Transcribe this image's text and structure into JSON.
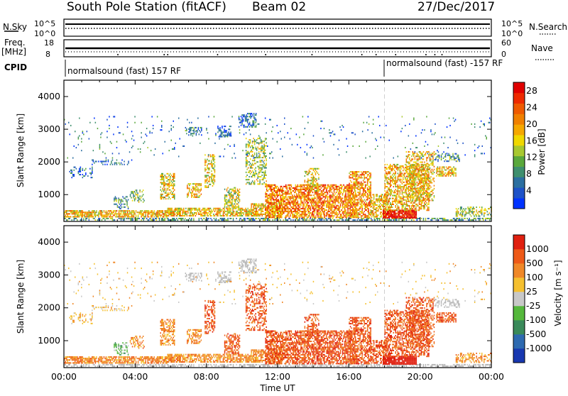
{
  "header": {
    "station": "South Pole Station (fitACF)",
    "beam": "Beam 02",
    "date": "27/Dec/2017"
  },
  "info_panel": {
    "nsky_label": "N.Sky",
    "nsky_ticks": [
      "10^5",
      "10^0"
    ],
    "nsearch_label": "N.Search",
    "nsearch_ticks": [
      "10^5",
      "10^0"
    ],
    "freq_label": "Freq.",
    "freq_unit": "[MHz]",
    "freq_ticks": [
      "18",
      "8"
    ],
    "nave_label": "Nave",
    "nave_ticks": [
      "60",
      "0"
    ],
    "cpid_label": "CPID",
    "cpid_segments": [
      {
        "start": "00:00",
        "label": "normalsound (fast) 157 RF"
      },
      {
        "start": "18:00",
        "label": "normalsound (fast) -157 RF"
      }
    ]
  },
  "chart_data": [
    {
      "type": "heatmap",
      "name": "power",
      "ylabel": "Slant Range [km]",
      "yticks": [
        "1000",
        "2000",
        "3000",
        "4000"
      ],
      "ylim": [
        180,
        4500
      ],
      "xticks": [
        "00:00",
        "04:00",
        "08:00",
        "12:00",
        "16:00",
        "20:00",
        "00:00"
      ],
      "xlim_hours": [
        0,
        24
      ],
      "colorbar": {
        "label": "Power [dB]",
        "ticks": [
          "4",
          "8",
          "12",
          "16",
          "20",
          "24",
          "28"
        ],
        "colors": [
          "#0033ff",
          "#1e52c8",
          "#2c6fa0",
          "#3f8f6e",
          "#5aa83c",
          "#a8c830",
          "#f0d800",
          "#f5a800",
          "#f08000",
          "#ef5a00",
          "#ee2a00",
          "#e00000"
        ]
      }
    },
    {
      "type": "heatmap",
      "name": "velocity",
      "ylabel": "Slant Range [km]",
      "yticks": [
        "1000",
        "2000",
        "3000",
        "4000"
      ],
      "ylim": [
        180,
        4500
      ],
      "xticks": [
        "00:00",
        "04:00",
        "08:00",
        "12:00",
        "16:00",
        "20:00",
        "00:00"
      ],
      "xlabel": "Time UT",
      "xlim_hours": [
        0,
        24
      ],
      "colorbar": {
        "label": "Velocity [m s⁻¹]",
        "ticks": [
          "1000",
          "500",
          "100",
          "25",
          "-25",
          "-100",
          "-500",
          "-1000"
        ],
        "colors": [
          "#1838b0",
          "#2e6ab0",
          "#3a8a5a",
          "#55b83c",
          "#c8c8c8",
          "#f5c030",
          "#f08828",
          "#ee5a18",
          "#e02010"
        ]
      }
    }
  ],
  "colors": {
    "ground_scatter": "#b4b4b4",
    "frame": "#000000",
    "marker": "#cfcfcf"
  }
}
